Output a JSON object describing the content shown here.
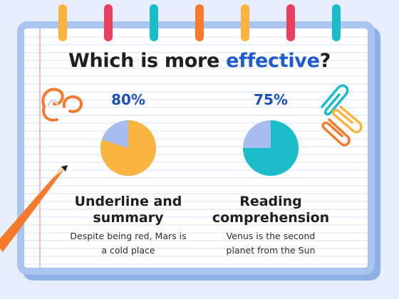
{
  "title": {
    "part1": "Which is more ",
    "part2": "effective",
    "part3": "?"
  },
  "colors": {
    "background": "#e6eefb",
    "paper": "#ffffff",
    "frame": "#a9c4ef",
    "rule": "#d6e2f5",
    "margin": "#f1a7a7",
    "accent_blue": "#1f5bd0",
    "pie_rest": "#a7bdf0",
    "orange": "#f9b43f",
    "teal": "#1bbcc8"
  },
  "decor": {
    "tabs": [
      "#f9b43f",
      "#e8405f",
      "#1bbcc8",
      "#f7792b",
      "#f9b43f",
      "#e8405f",
      "#1bbcc8"
    ],
    "icons": [
      "pencil-icon",
      "pencil-shavings-icon",
      "paperclip-icon"
    ]
  },
  "chart_data": [
    {
      "type": "pie",
      "percent_label": "80%",
      "value": 80,
      "title": "Underline and summary",
      "title_lines": [
        "Underline and",
        "summary"
      ],
      "description_lines": [
        "Despite being red, Mars is",
        "a cold place"
      ],
      "color": "#f9b43f",
      "rest_color": "#a7bdf0"
    },
    {
      "type": "pie",
      "percent_label": "75%",
      "value": 75,
      "title": "Reading comprehension",
      "title_lines": [
        "Reading",
        "comprehension"
      ],
      "description_lines": [
        "Venus is the second",
        "planet from the Sun"
      ],
      "color": "#1bbcc8",
      "rest_color": "#a7bdf0"
    }
  ]
}
